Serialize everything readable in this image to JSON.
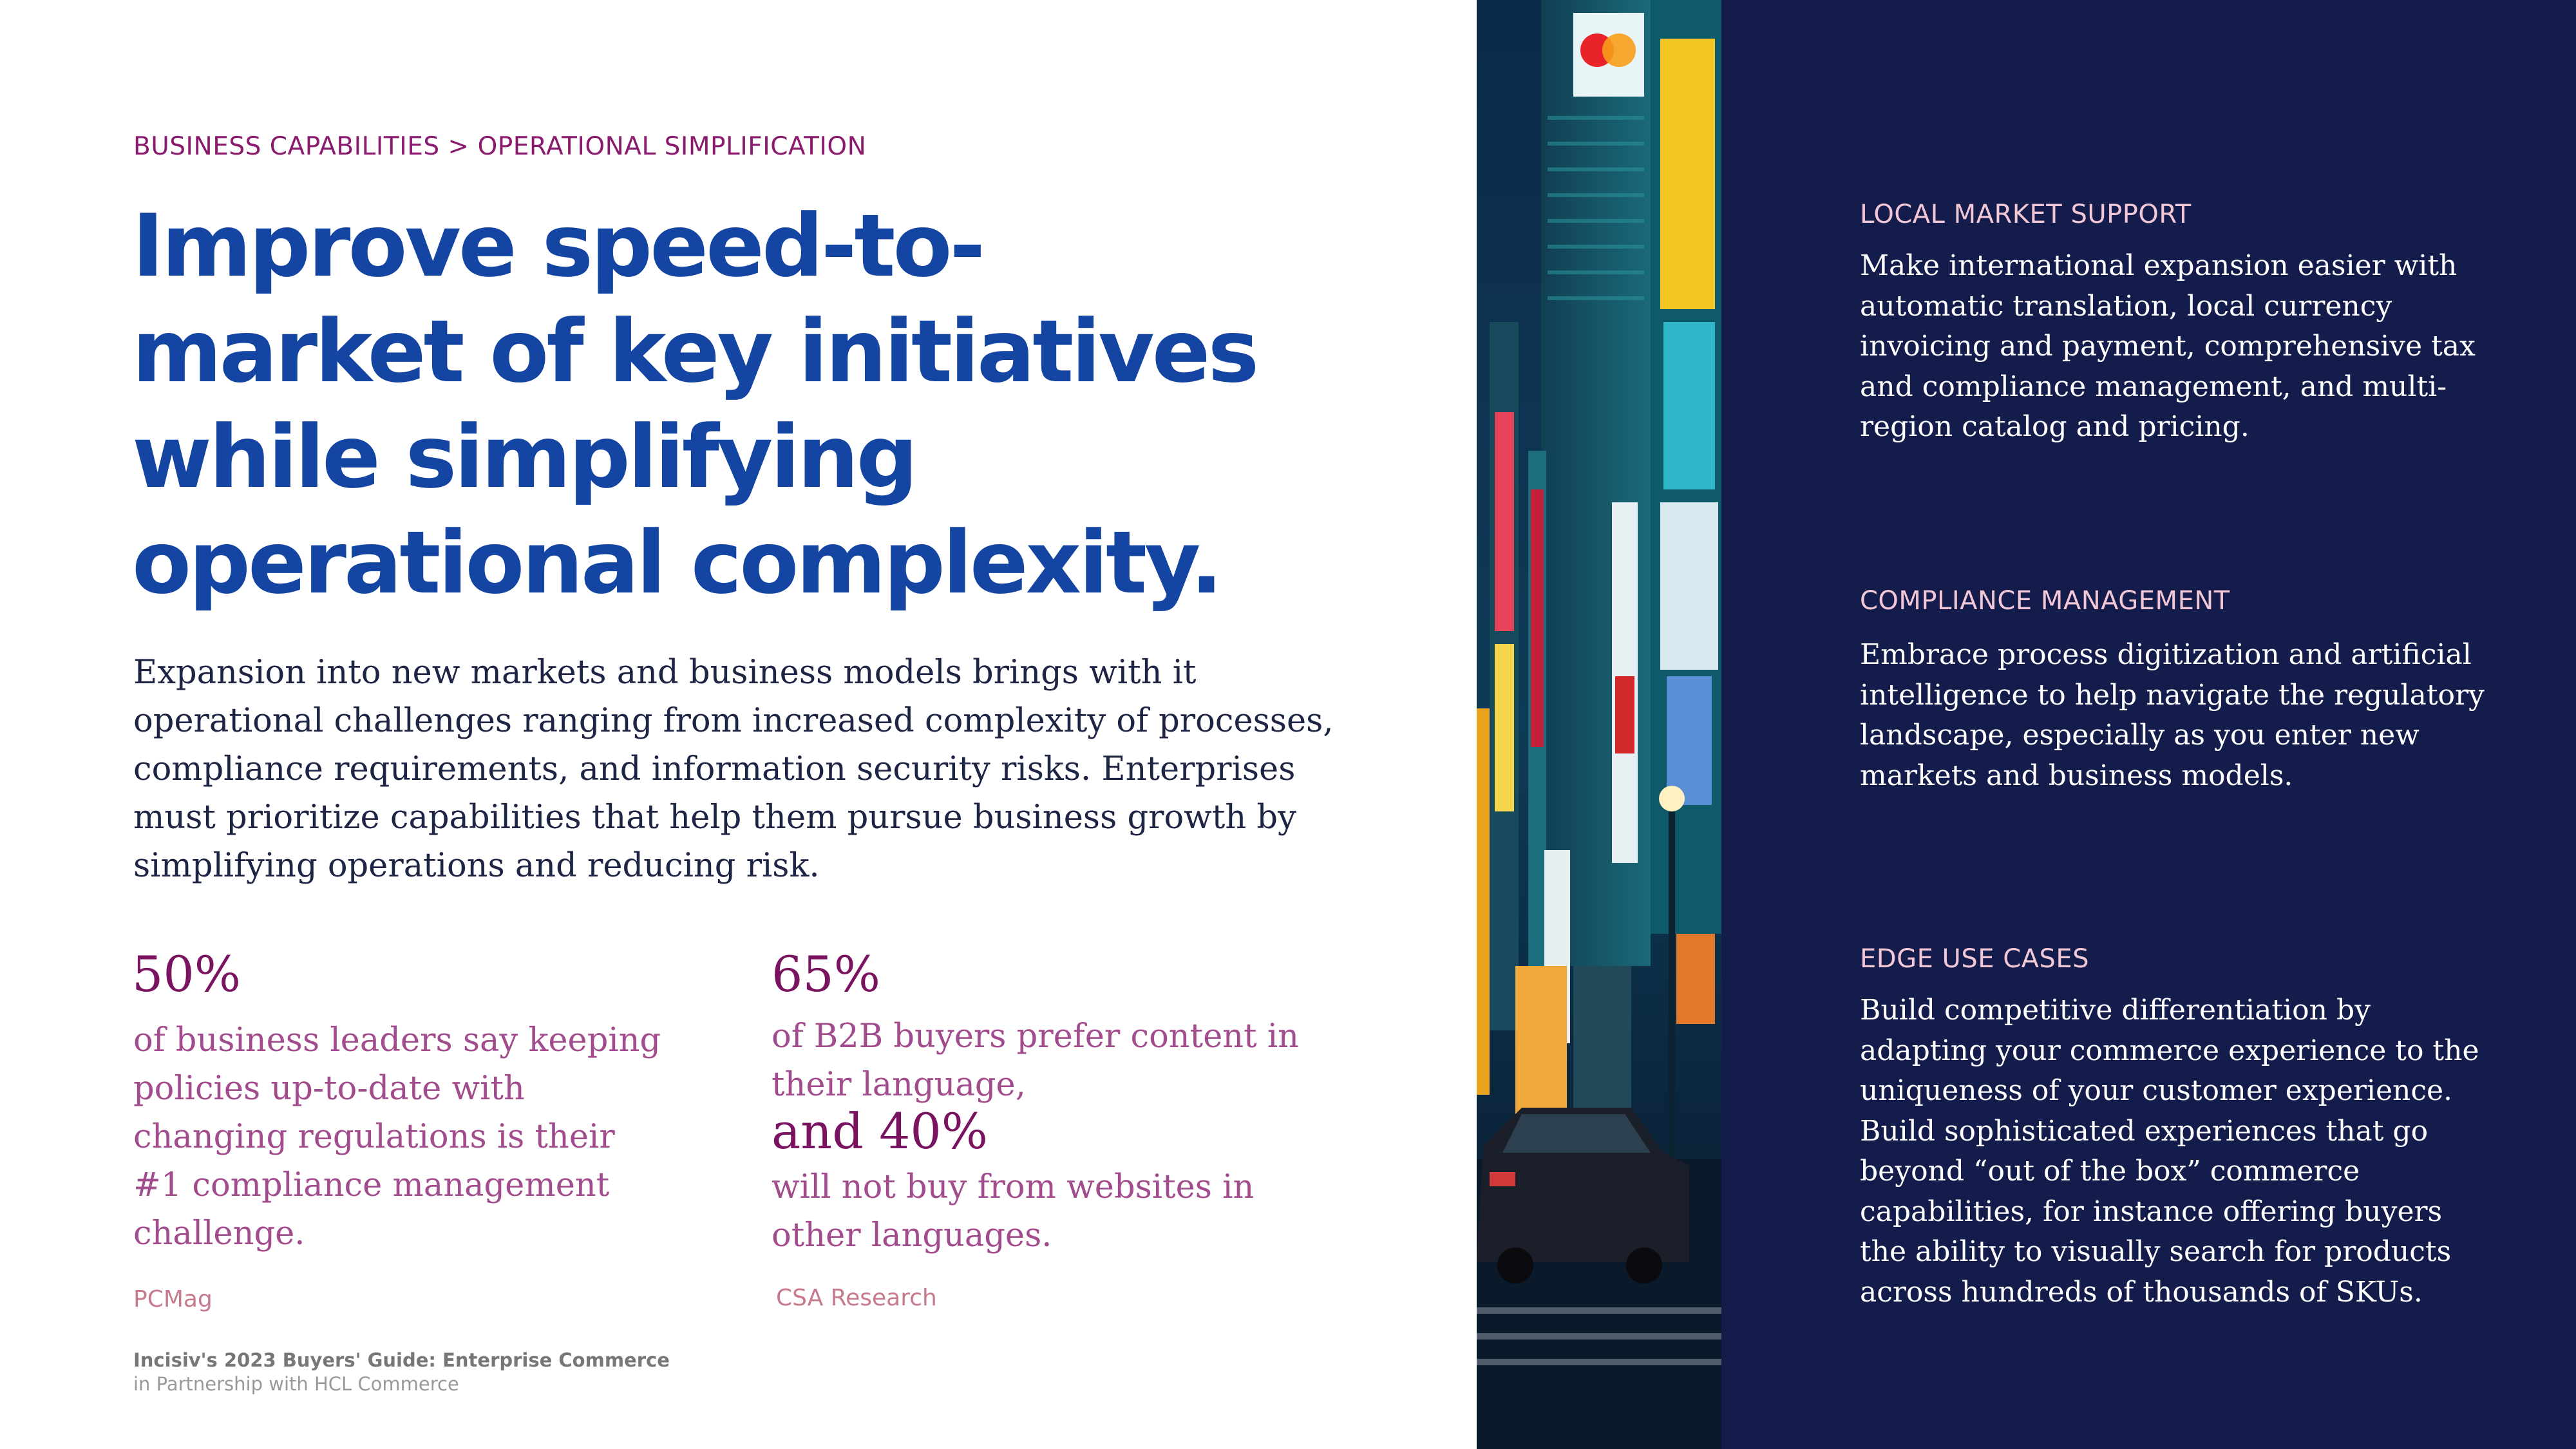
{
  "breadcrumb": "BUSINESS CAPABILITIES > OPERATIONAL SIMPLIFICATION",
  "headline": [
    "Improve speed-to-",
    "market of key initiatives",
    "while simplifying",
    "operational complexity."
  ],
  "intro": [
    "Expansion into new markets and business models brings with it",
    "operational challenges ranging from increased complexity of processes,",
    "compliance requirements, and information security risks. Enterprises",
    "must prioritize capabilities that help them pursue business growth by",
    "simplifying operations and reducing risk."
  ],
  "stats": {
    "left": {
      "value": "50%",
      "text": [
        "of business leaders say keeping",
        "policies up-to-date with",
        "changing regulations is their",
        "#1 compliance management",
        "challenge."
      ],
      "source": "PCMag"
    },
    "right": {
      "value": "65%",
      "text_a": [
        "of B2B buyers prefer content in",
        "their language,"
      ],
      "value_b": "and 40%",
      "text_b": [
        "will not buy from websites in",
        "other languages."
      ],
      "source": "CSA Research"
    }
  },
  "footer": {
    "line1": "Incisiv's 2023 Buyers' Guide: Enterprise Commerce",
    "line2": "in Partnership with HCL Commerce"
  },
  "sections": [
    {
      "title": "LOCAL MARKET SUPPORT",
      "body": [
        "Make international expansion easier with",
        "automatic translation, local currency",
        "invoicing and payment, comprehensive tax",
        "and compliance management, and multi-",
        "region catalog and pricing."
      ]
    },
    {
      "title": "COMPLIANCE MANAGEMENT",
      "body": [
        "Embrace process digitization and artificial",
        "intelligence to help navigate the regulatory",
        "landscape, especially as you enter new",
        "markets and business models."
      ]
    },
    {
      "title": "EDGE USE CASES",
      "body": [
        "Build competitive differentiation by",
        "adapting your commerce experience to the",
        "uniqueness of your customer experience.",
        "Build sophisticated experiences that go",
        "beyond “out of the box” commerce",
        "capabilities, for instance offering buyers",
        "the ability to visually search for products",
        "across hundreds of thousands of SKUs."
      ]
    }
  ],
  "colors": {
    "headline": "#1545a3",
    "accent": "#7a1460",
    "panel": "#141c4c"
  }
}
